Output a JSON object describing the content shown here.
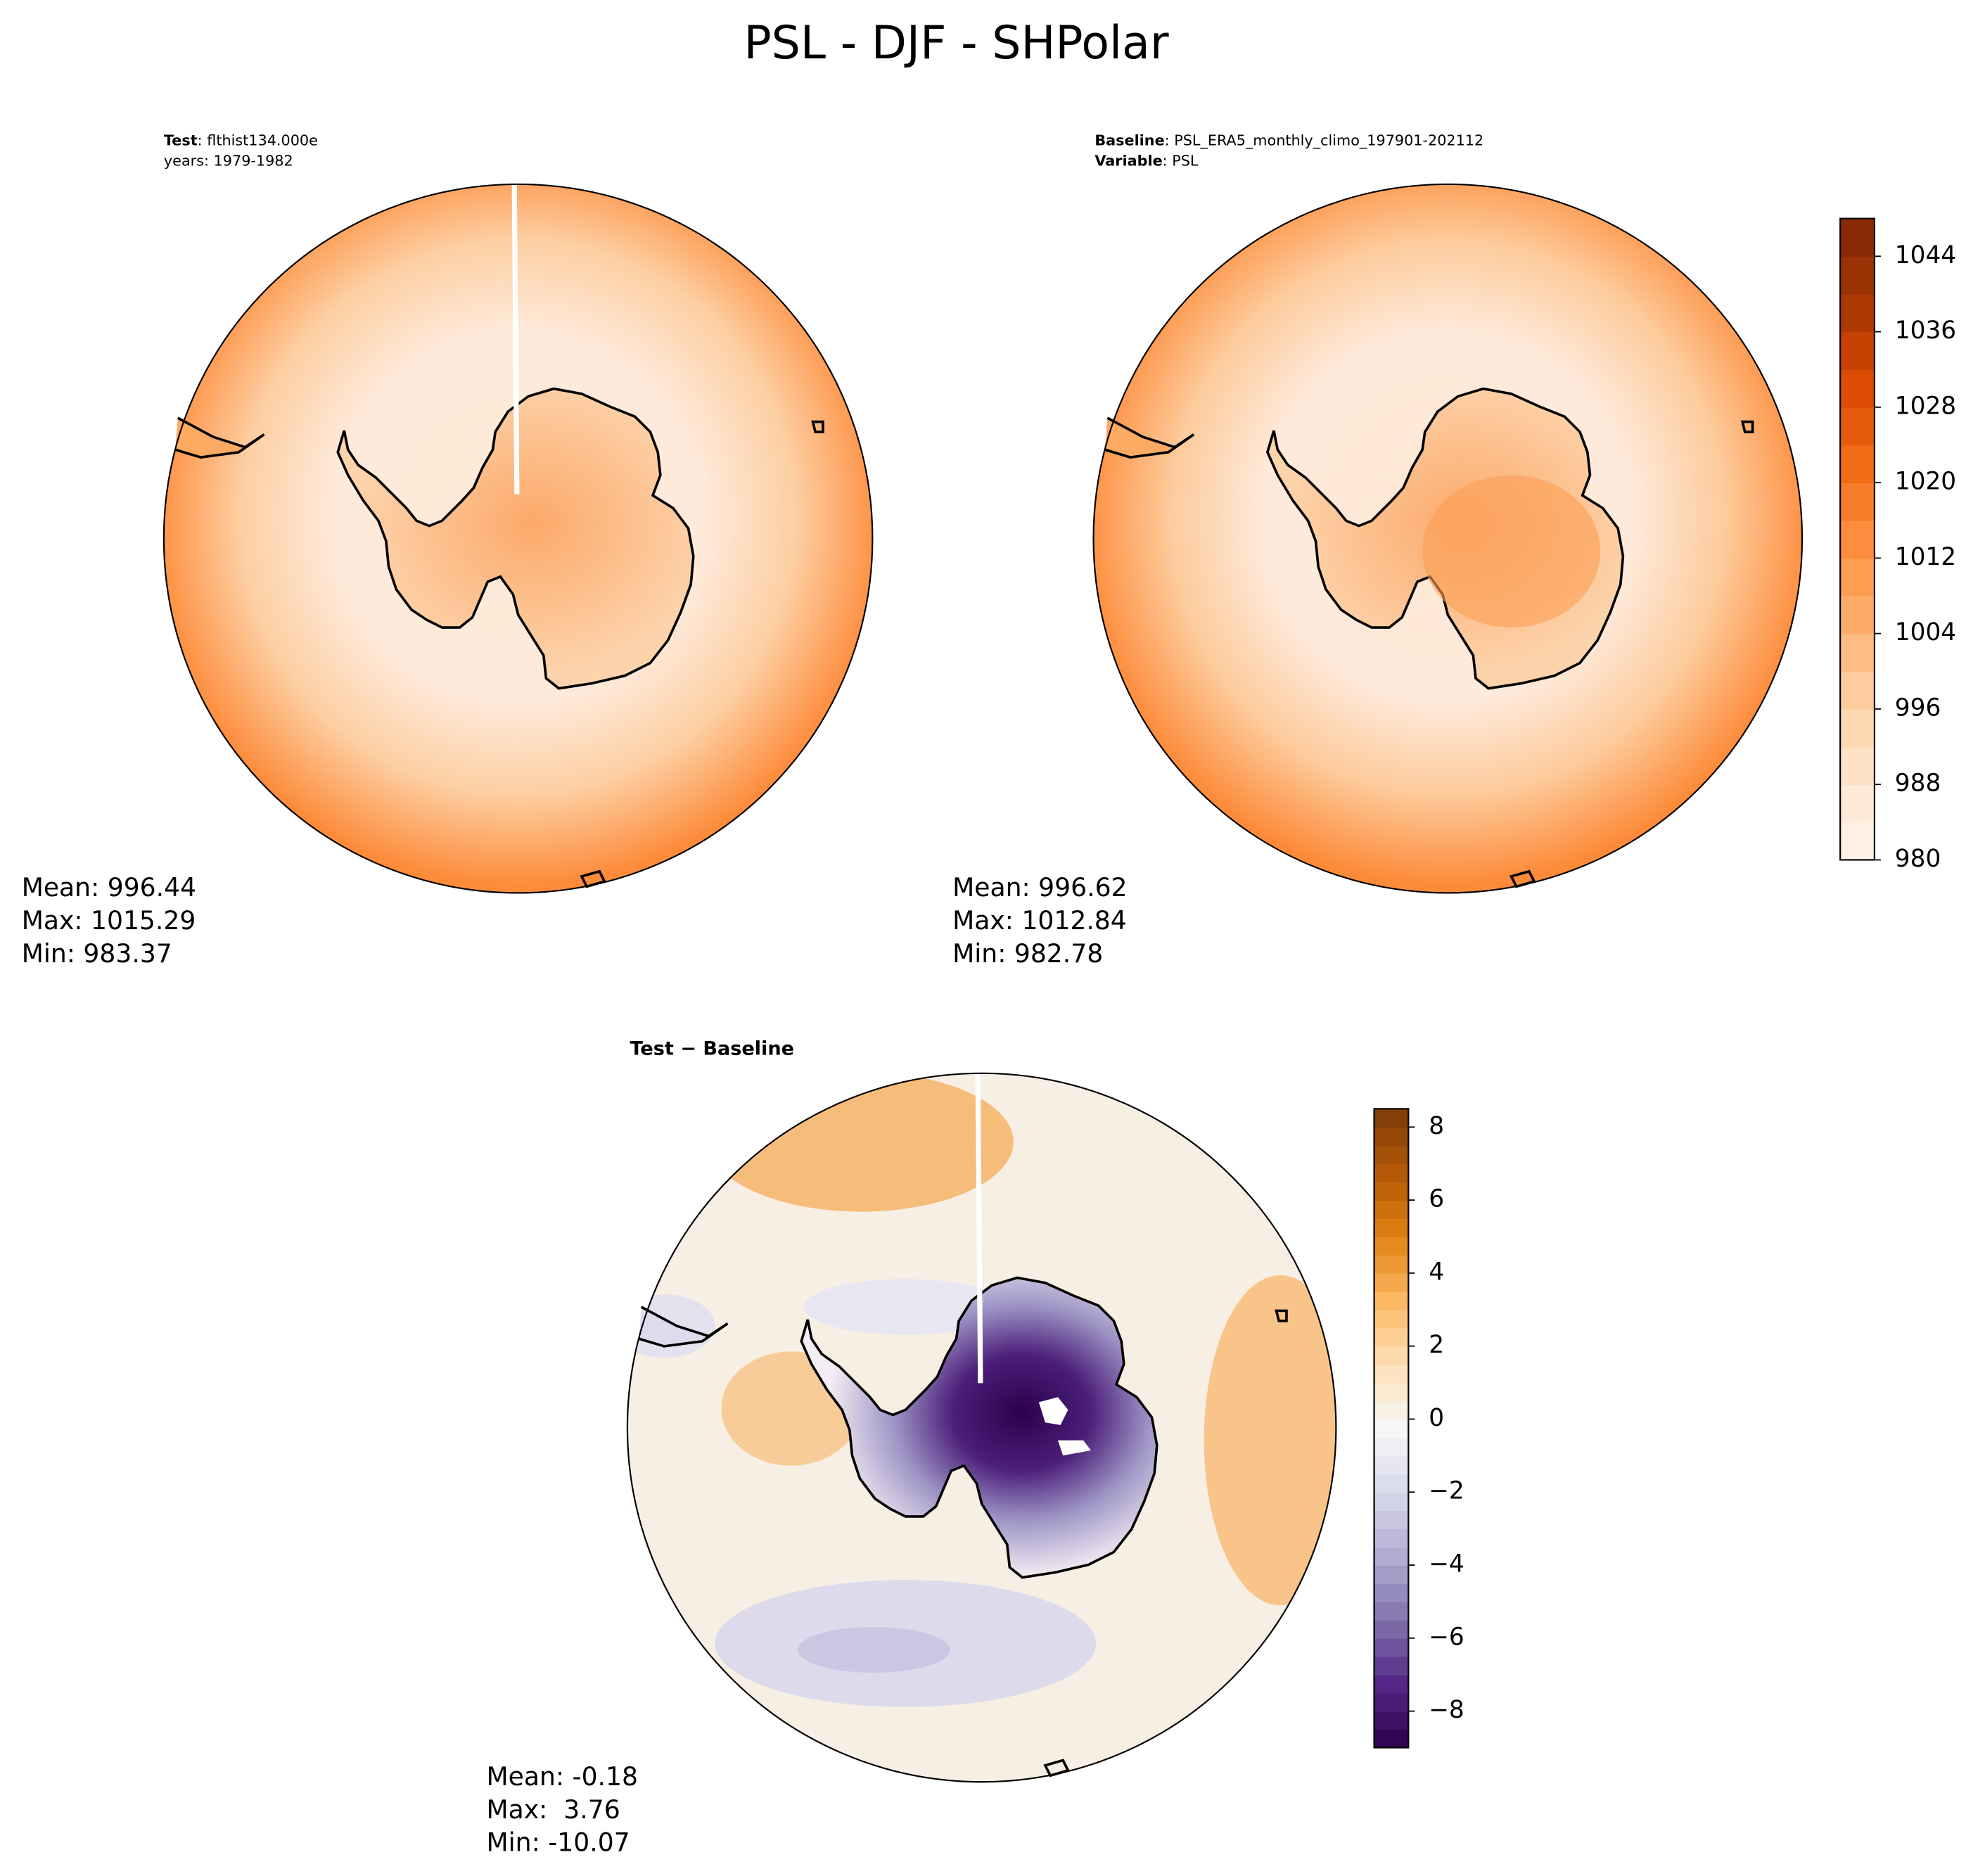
{
  "chart_data": {
    "type": "contour",
    "title": "PSL - DJF - SHPolar",
    "panels": [
      {
        "header": [
          {
            "bold": "Test",
            "text": ": flthist134.000e"
          },
          {
            "text": "years: 1979-1982"
          }
        ],
        "stats": [
          {
            "label": "Mean:",
            "value": 996.44
          },
          {
            "label": "Max:",
            "value": 1015.29
          },
          {
            "label": "Min:",
            "value": 983.37
          }
        ]
      },
      {
        "header": [
          {
            "bold": "Baseline",
            "text": ": PSL_ERA5_monthly_climo_197901-202112"
          },
          {
            "bold": "Variable",
            "text": ": PSL"
          }
        ],
        "stats": [
          {
            "label": "Mean:",
            "value": 996.62
          },
          {
            "label": "Max:",
            "value": 1012.84
          },
          {
            "label": "Min:",
            "value": 982.78
          }
        ]
      },
      {
        "header": [
          {
            "bold": "Test − Baseline"
          }
        ],
        "stats": [
          {
            "label": "Mean:",
            "value": -0.18
          },
          {
            "label": "Max: ",
            "value": 3.76
          },
          {
            "label": "Min:",
            "value": -10.07
          }
        ]
      }
    ],
    "colorbars": [
      {
        "colors": [
          "#fff5eb",
          "#fee6ce",
          "#fdd0a2",
          "#fdae6b",
          "#fd8d3c",
          "#f16913",
          "#d94801",
          "#a63603",
          "#7f2704"
        ],
        "ylim": [
          980,
          1048
        ],
        "yticks": [
          980,
          988,
          996,
          1004,
          1012,
          1020,
          1028,
          1036,
          1044
        ],
        "contour_step": 4
      },
      {
        "colors": [
          "#2d004b",
          "#542788",
          "#8073ac",
          "#b2abd2",
          "#d8daeb",
          "#f7f7f7",
          "#fee0b6",
          "#fdb863",
          "#e08214",
          "#b35806",
          "#7f3b08"
        ],
        "ylim": [
          -9,
          8.5
        ],
        "yticks": [
          {
            "value": -8,
            "label": "−8"
          },
          {
            "value": -6,
            "label": "−6"
          },
          {
            "value": -4,
            "label": "−4"
          },
          {
            "value": -2,
            "label": "−2"
          },
          0,
          2,
          4,
          6,
          8
        ],
        "contour_step": 0.5
      }
    ]
  }
}
